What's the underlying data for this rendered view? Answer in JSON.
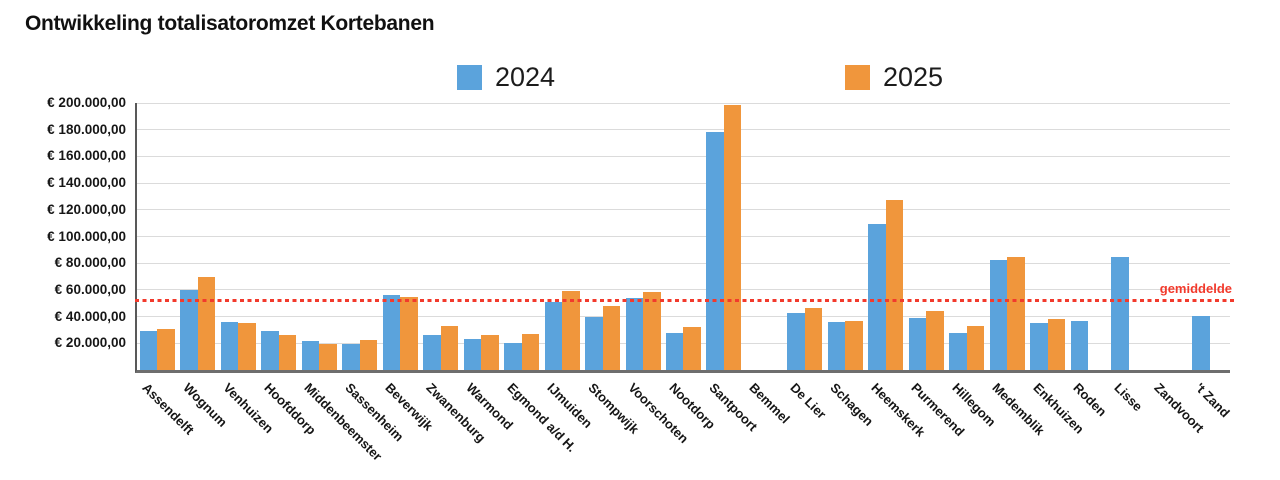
{
  "chart_data": {
    "type": "bar",
    "title": "Ontwikkeling totalisatoromzet Kortebanen",
    "categories": [
      "Assendelft",
      "Wognum",
      "Venhuizen",
      "Hoofddorp",
      "Middenbeemster",
      "Sassenheim",
      "Beverwijk",
      "Zwanenburg",
      "Warmond",
      "Egmond a/d H.",
      "IJmuiden",
      "Stompwijk",
      "Voorschoten",
      "Nootdorp",
      "Santpoort",
      "Bemmel",
      "De Lier",
      "Schagen",
      "Heemskerk",
      "Purmerend",
      "Hillegom",
      "Medemblik",
      "Enkhuizen",
      "Roden",
      "Lisse",
      "Zandvoort",
      "'t Zand"
    ],
    "series": [
      {
        "name": "2024",
        "color": "#5BA3DC",
        "values": [
          29500,
          60000,
          36000,
          29500,
          22000,
          19500,
          56000,
          26000,
          23000,
          20000,
          51000,
          40000,
          54000,
          28000,
          178000,
          null,
          42500,
          36000,
          109500,
          39000,
          27500,
          82500,
          35500,
          37000,
          85000,
          null,
          40500
        ]
      },
      {
        "name": "2025",
        "color": "#F0963C",
        "values": [
          31000,
          69500,
          35000,
          26000,
          19500,
          22500,
          54500,
          33000,
          26000,
          27000,
          59500,
          48000,
          58500,
          32000,
          198500,
          null,
          46500,
          37000,
          127500,
          44000,
          33000,
          84500,
          38500,
          null,
          null,
          null,
          null
        ]
      }
    ],
    "ylim": [
      0,
      200000
    ],
    "y_tick_step": 20000,
    "y_ticks": [
      {
        "value": 200000,
        "label": "€ 200.000,00"
      },
      {
        "value": 180000,
        "label": "€ 180.000,00"
      },
      {
        "value": 160000,
        "label": "€ 160.000,00"
      },
      {
        "value": 140000,
        "label": "€ 140.000,00"
      },
      {
        "value": 120000,
        "label": "€ 120.000,00"
      },
      {
        "value": 100000,
        "label": "€ 100.000,00"
      },
      {
        "value": 80000,
        "label": "€ 80.000,00"
      },
      {
        "value": 60000,
        "label": "€ 60.000,00"
      },
      {
        "value": 40000,
        "label": "€ 40.000,00"
      },
      {
        "value": 20000,
        "label": "€ 20.000,00"
      }
    ],
    "grid": true,
    "legend_position": "top",
    "average_line": {
      "label": "gemiddelde",
      "value": 52500,
      "color": "#F23A2C"
    }
  },
  "colors": {
    "grid": "#dbdbdb",
    "axis": "#595959",
    "text": "#161616"
  }
}
